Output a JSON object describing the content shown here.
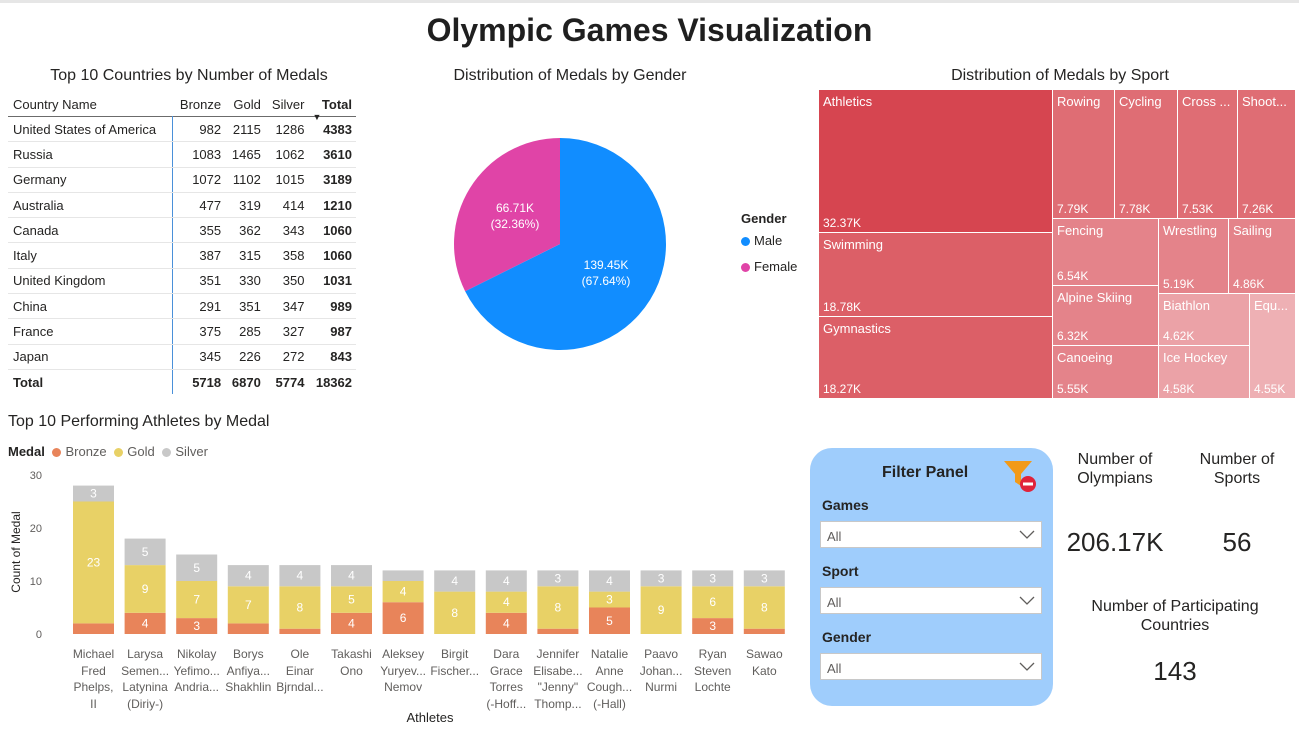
{
  "title": "Olympic Games Visualization",
  "table": {
    "title": "Top 10 Countries by Number of Medals",
    "columns": [
      "Country Name",
      "Bronze",
      "Gold",
      "Silver",
      "Total"
    ],
    "rows": [
      {
        "country": "United States of America",
        "bronze": "982",
        "gold": "2115",
        "silver": "1286",
        "total": "4383"
      },
      {
        "country": "Russia",
        "bronze": "1083",
        "gold": "1465",
        "silver": "1062",
        "total": "3610"
      },
      {
        "country": "Germany",
        "bronze": "1072",
        "gold": "1102",
        "silver": "1015",
        "total": "3189"
      },
      {
        "country": "Australia",
        "bronze": "477",
        "gold": "319",
        "silver": "414",
        "total": "1210"
      },
      {
        "country": "Canada",
        "bronze": "355",
        "gold": "362",
        "silver": "343",
        "total": "1060"
      },
      {
        "country": "Italy",
        "bronze": "387",
        "gold": "315",
        "silver": "358",
        "total": "1060"
      },
      {
        "country": "United Kingdom",
        "bronze": "351",
        "gold": "330",
        "silver": "350",
        "total": "1031"
      },
      {
        "country": "China",
        "bronze": "291",
        "gold": "351",
        "silver": "347",
        "total": "989"
      },
      {
        "country": "France",
        "bronze": "375",
        "gold": "285",
        "silver": "327",
        "total": "987"
      },
      {
        "country": "Japan",
        "bronze": "345",
        "gold": "226",
        "silver": "272",
        "total": "843"
      }
    ],
    "total_row": {
      "label": "Total",
      "bronze": "5718",
      "gold": "6870",
      "silver": "5774",
      "total": "18362"
    }
  },
  "gender_chart": {
    "title": "Distribution of Medals by Gender",
    "legend_title": "Gender",
    "slices": [
      {
        "name": "Male",
        "value_label": "139.45K",
        "pct_label": "(67.64%)",
        "value": 139.45,
        "pct": 67.64,
        "color": "#118dff"
      },
      {
        "name": "Female",
        "value_label": "66.71K",
        "pct_label": "(32.36%)",
        "value": 66.71,
        "pct": 32.36,
        "color": "#e044a7"
      }
    ]
  },
  "sport_chart": {
    "title": "Distribution of Medals by Sport",
    "cells": [
      {
        "name": "Athletics",
        "value": "32.37K",
        "color": "#d64550"
      },
      {
        "name": "Rowing",
        "value": "7.79K",
        "color": "#df6d74"
      },
      {
        "name": "Cycling",
        "value": "7.78K",
        "color": "#df6d74"
      },
      {
        "name": "Cross ...",
        "value": "7.53K",
        "color": "#df6d74"
      },
      {
        "name": "Shoot...",
        "value": "7.26K",
        "color": "#df6d74"
      },
      {
        "name": "Swimming",
        "value": "18.78K",
        "color": "#dc5f67"
      },
      {
        "name": "Gymnastics",
        "value": "18.27K",
        "color": "#dc5f67"
      },
      {
        "name": "Fencing",
        "value": "6.54K",
        "color": "#e4838a"
      },
      {
        "name": "Wrestling",
        "value": "5.19K",
        "color": "#e4838a"
      },
      {
        "name": "Sailing",
        "value": "4.86K",
        "color": "#e4838a"
      },
      {
        "name": "Alpine Skiing",
        "value": "6.32K",
        "color": "#e4838a"
      },
      {
        "name": "Biathlon",
        "value": "4.62K",
        "color": "#eba2a7"
      },
      {
        "name": "Equ...",
        "value": "4.55K",
        "color": "#eeb0b4"
      },
      {
        "name": "Canoeing",
        "value": "5.55K",
        "color": "#e4838a"
      },
      {
        "name": "Ice Hockey",
        "value": "4.58K",
        "color": "#eba2a7"
      }
    ]
  },
  "athletes_chart": {
    "title": "Top 10 Performing Athletes by Medal",
    "legend_title": "Medal",
    "xlabel": "Athletes",
    "ylabel": "Count of Medal",
    "y_ticks": [
      "0",
      "10",
      "20",
      "30"
    ],
    "colors": {
      "Bronze": "#e8845a",
      "Gold": "#e8d166",
      "Silver": "#c8c8c8"
    }
  },
  "chart_data": {
    "type": "bar",
    "stacked": true,
    "title": "Top 10 Performing Athletes by Medal",
    "xlabel": "Athletes",
    "ylabel": "Count of Medal",
    "ylim": [
      0,
      30
    ],
    "categories": [
      "Michael Fred Phelps, II",
      "Larysa Semen... Latynina (Diriy-)",
      "Nikolay Yefimo... Andria...",
      "Borys Anfiya... Shakhlin",
      "Ole Einar Bjrndal...",
      "Takashi Ono",
      "Aleksey Yuryev... Nemov",
      "Birgit Fischer...",
      "Dara Grace Torres (-Hoff...",
      "Jennifer Elisabe... \"Jenny\" Thomp...",
      "Natalie Anne Cough... (-Hall)",
      "Paavo Johan... Nurmi",
      "Ryan Steven Lochte",
      "Sawao Kato"
    ],
    "category_lines": [
      [
        "Michael",
        "Fred",
        "Phelps,",
        "II"
      ],
      [
        "Larysa",
        "Semen...",
        "Latynina",
        "(Diriy-)"
      ],
      [
        "Nikolay",
        "Yefimo...",
        "Andria..."
      ],
      [
        "Borys",
        "Anfiya...",
        "Shakhlin"
      ],
      [
        "Ole",
        "Einar",
        "Bjrndal..."
      ],
      [
        "Takashi",
        "Ono"
      ],
      [
        "Aleksey",
        "Yuryev...",
        "Nemov"
      ],
      [
        "Birgit",
        "Fischer..."
      ],
      [
        "Dara",
        "Grace",
        "Torres",
        "(-Hoff..."
      ],
      [
        "Jennifer",
        "Elisabe...",
        "\"Jenny\"",
        "Thomp..."
      ],
      [
        "Natalie",
        "Anne",
        "Cough...",
        "(-Hall)"
      ],
      [
        "Paavo",
        "Johan...",
        "Nurmi"
      ],
      [
        "Ryan",
        "Steven",
        "Lochte"
      ],
      [
        "Sawao",
        "Kato"
      ]
    ],
    "series": [
      {
        "name": "Bronze",
        "values": [
          2,
          4,
          3,
          2,
          1,
          4,
          6,
          0,
          4,
          1,
          5,
          0,
          3,
          1
        ]
      },
      {
        "name": "Gold",
        "values": [
          23,
          9,
          7,
          7,
          8,
          5,
          4,
          8,
          4,
          8,
          3,
          9,
          6,
          8
        ]
      },
      {
        "name": "Silver",
        "values": [
          3,
          5,
          5,
          4,
          4,
          4,
          2,
          4,
          4,
          3,
          4,
          3,
          3,
          3
        ]
      }
    ],
    "data_labels": {
      "Bronze": [
        "",
        "4",
        "3",
        "",
        "",
        "4",
        "6",
        "",
        "4",
        "",
        "5",
        "",
        "3",
        ""
      ],
      "Gold": [
        "23",
        "9",
        "7",
        "7",
        "8",
        "5",
        "4",
        "8",
        "4",
        "8",
        "3",
        "9",
        "6",
        "8"
      ],
      "Silver": [
        "3",
        "5",
        "5",
        "4",
        "4",
        "4",
        "",
        "4",
        "4",
        "3",
        "4",
        "3",
        "3",
        "3"
      ]
    }
  },
  "filter_panel": {
    "title": "Filter Panel",
    "filters": [
      {
        "label": "Games",
        "value": "All"
      },
      {
        "label": "Sport",
        "value": "All"
      },
      {
        "label": "Gender",
        "value": "All"
      }
    ]
  },
  "cards": {
    "olympians": {
      "label_line1": "Number of",
      "label_line2": "Olympians",
      "value": "206.17K"
    },
    "sports": {
      "label_line1": "Number of",
      "label_line2": "Sports",
      "value": "56"
    },
    "countries": {
      "label_line1": "Number of Participating",
      "label_line2": "Countries",
      "value": "143"
    }
  }
}
